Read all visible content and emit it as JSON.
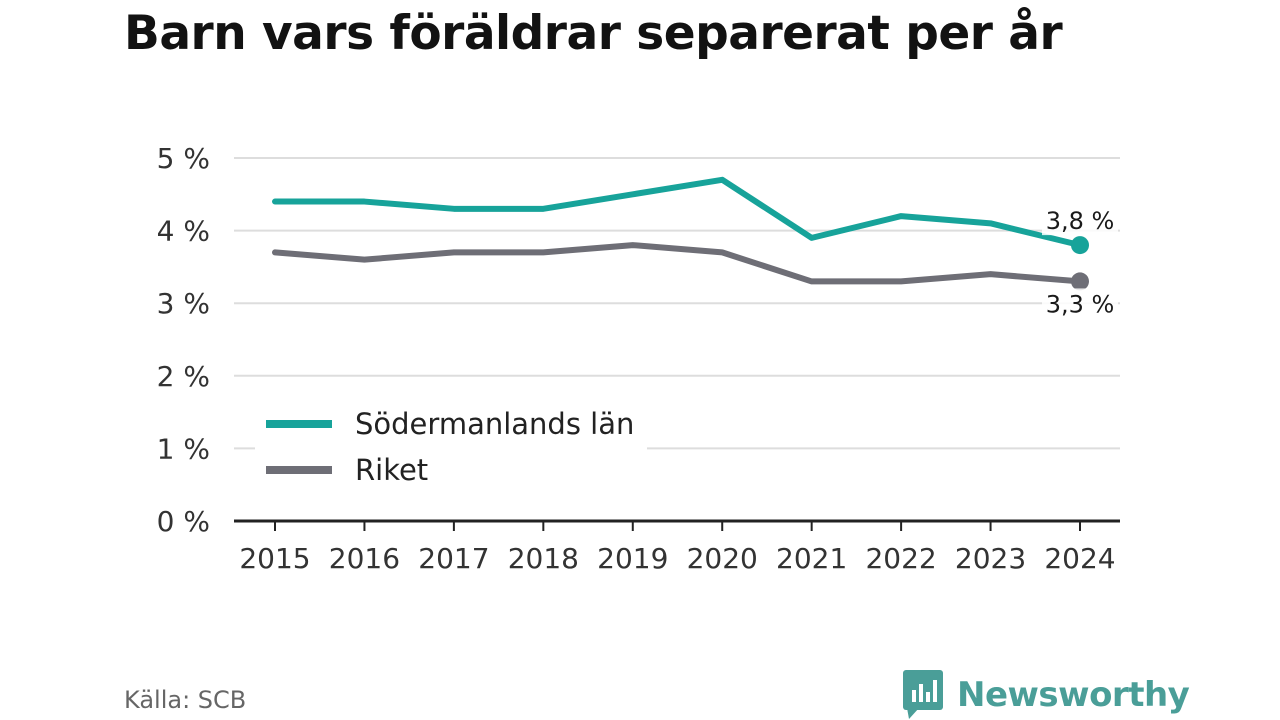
{
  "title": "Barn vars föräldrar separerat per år",
  "source": "Källa: SCB",
  "brand": {
    "name": "Newsworthy",
    "icon": "newsworthy-logo-icon"
  },
  "colors": {
    "series_1": "#17a39a",
    "series_2": "#6e6e76",
    "grid": "#dddddd",
    "axis": "#222222"
  },
  "chart_data": {
    "type": "line",
    "x": [
      "2015",
      "2016",
      "2017",
      "2018",
      "2019",
      "2020",
      "2021",
      "2022",
      "2023",
      "2024"
    ],
    "series": [
      {
        "name": "Södermanlands län",
        "values": [
          4.4,
          4.4,
          4.3,
          4.3,
          4.5,
          4.7,
          3.9,
          4.2,
          4.1,
          3.8
        ],
        "end_label": "3,8 %"
      },
      {
        "name": "Riket",
        "values": [
          3.7,
          3.6,
          3.7,
          3.7,
          3.8,
          3.7,
          3.3,
          3.3,
          3.4,
          3.3
        ],
        "end_label": "3,3 %"
      }
    ],
    "ylim": [
      0,
      5
    ],
    "yticks": [
      "0 %",
      "1 %",
      "2 %",
      "3 %",
      "4 %",
      "5 %"
    ],
    "grid": true,
    "legend": "bottom-left"
  }
}
